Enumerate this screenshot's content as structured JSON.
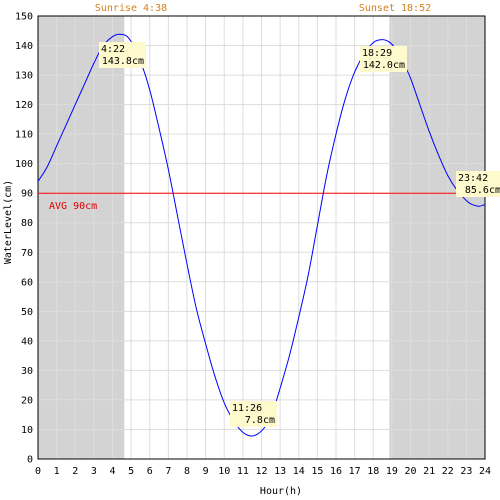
{
  "chart_data": {
    "type": "line",
    "xlabel": "Hour(h)",
    "ylabel": "WaterLevel(cm)",
    "xlim": [
      0,
      24
    ],
    "ylim": [
      0,
      150
    ],
    "x_ticks": [
      0,
      1,
      2,
      3,
      4,
      5,
      6,
      7,
      8,
      9,
      10,
      11,
      12,
      13,
      14,
      15,
      16,
      17,
      18,
      19,
      20,
      21,
      22,
      23,
      24
    ],
    "y_ticks": [
      0,
      10,
      20,
      30,
      40,
      50,
      60,
      70,
      80,
      90,
      100,
      110,
      120,
      130,
      140,
      150
    ],
    "grid": true,
    "night_shading": [
      [
        0,
        4.633
      ],
      [
        18.867,
        24
      ]
    ],
    "sunrise_label": "Sunrise 4:38",
    "sunset_label": "Sunset 18:52",
    "average": {
      "value": 90,
      "label": "AVG 90cm",
      "color": "#ff0000"
    },
    "series": [
      {
        "color": "#0000ff",
        "x": [
          0,
          0.5,
          1,
          1.5,
          2,
          2.5,
          3,
          3.5,
          4,
          4.367,
          4.8,
          5.2,
          5.6,
          6,
          6.5,
          7,
          7.5,
          8,
          8.5,
          9,
          9.5,
          10,
          10.5,
          11,
          11.433,
          11.8,
          12.2,
          12.6,
          13,
          13.5,
          14,
          14.5,
          15,
          15.5,
          16,
          16.5,
          17,
          17.5,
          18,
          18.483,
          18.9,
          19.3,
          19.7,
          20,
          20.5,
          21,
          21.5,
          22,
          22.5,
          23,
          23.3,
          23.7,
          24
        ],
        "y": [
          94,
          99,
          106,
          113,
          120,
          127,
          134,
          140,
          143,
          143.8,
          143,
          139,
          133,
          125,
          112,
          98,
          82,
          66,
          51,
          39,
          28,
          19,
          13,
          9,
          7.8,
          8.5,
          11,
          16,
          24,
          35,
          48,
          62,
          79,
          96,
          110,
          122,
          131,
          137,
          141,
          142.0,
          141,
          138,
          133,
          129,
          120,
          111,
          103,
          96,
          91,
          87.5,
          86.2,
          85.6,
          86.2
        ]
      }
    ],
    "annotations": [
      {
        "time": "4:22",
        "value": "143.8cm"
      },
      {
        "time": "11:26",
        "value": "7.8cm"
      },
      {
        "time": "18:29",
        "value": "142.0cm"
      },
      {
        "time": "23:42",
        "value": "85.6cm"
      }
    ],
    "colors": {
      "night": "#d3d3d3",
      "grid": "#dddddd",
      "annotation_bg": "#fffacd",
      "sun_text": "#d4801c"
    }
  }
}
